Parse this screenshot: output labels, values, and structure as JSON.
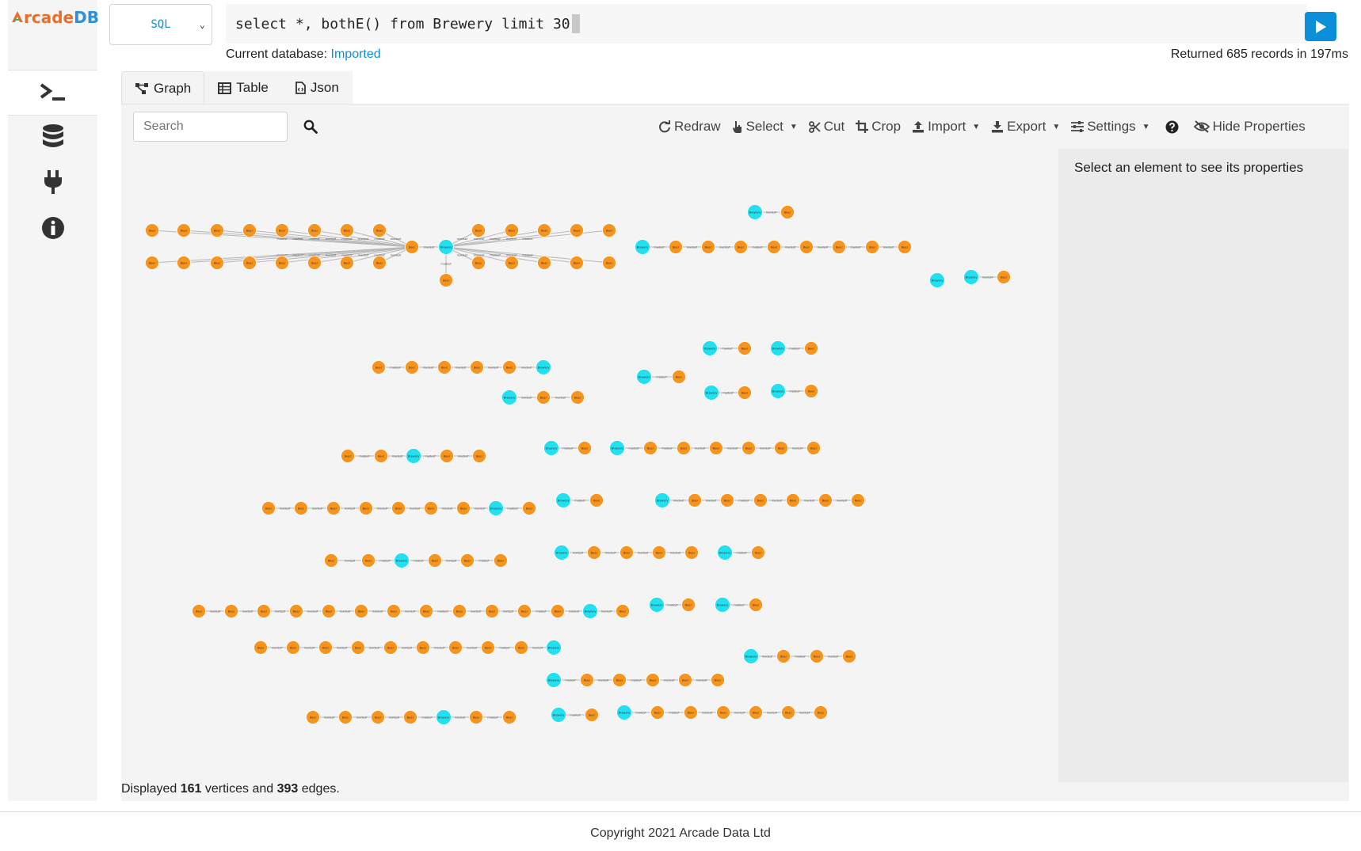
{
  "app": {
    "logo_prefix": "A",
    "logo_mid": "rcade",
    "logo_suffix": "DB"
  },
  "sidebar": {
    "items": [
      {
        "name": "query",
        "icon": "terminal-icon"
      },
      {
        "name": "database",
        "icon": "database-icon"
      },
      {
        "name": "plugins",
        "icon": "plug-icon"
      },
      {
        "name": "info",
        "icon": "info-icon"
      }
    ]
  },
  "query": {
    "language": "SQL",
    "text": "select *, bothE() from Brewery limit 30",
    "db_label": "Current database:",
    "db_name": "Imported",
    "returned": "Returned 685 records in 197ms"
  },
  "tabs": [
    {
      "label": "Graph",
      "icon": "graph-icon"
    },
    {
      "label": "Table",
      "icon": "table-icon"
    },
    {
      "label": "Json",
      "icon": "json-file-icon"
    }
  ],
  "search": {
    "placeholder": "Search"
  },
  "toolbar": {
    "redraw": "Redraw",
    "select": "Select",
    "cut": "Cut",
    "crop": "Crop",
    "import": "Import",
    "export": "Export",
    "settings": "Settings",
    "hide_properties": "Hide Properties"
  },
  "properties": {
    "hint": "Select an element to see its properties"
  },
  "status": {
    "prefix": "Displayed",
    "vertices": "161",
    "mid": "vertices and",
    "edges": "393",
    "suffix": "edges."
  },
  "footer": {
    "text": "Copyright 2021 Arcade Data Ltd"
  },
  "graph": {
    "vertex_types": {
      "Brewery": "#22e0f0",
      "Beer": "#f7941d"
    },
    "node_labels": {
      "Brewery": "Brewery",
      "Beer": "Beer"
    },
    "edge_label": "madeof"
  }
}
